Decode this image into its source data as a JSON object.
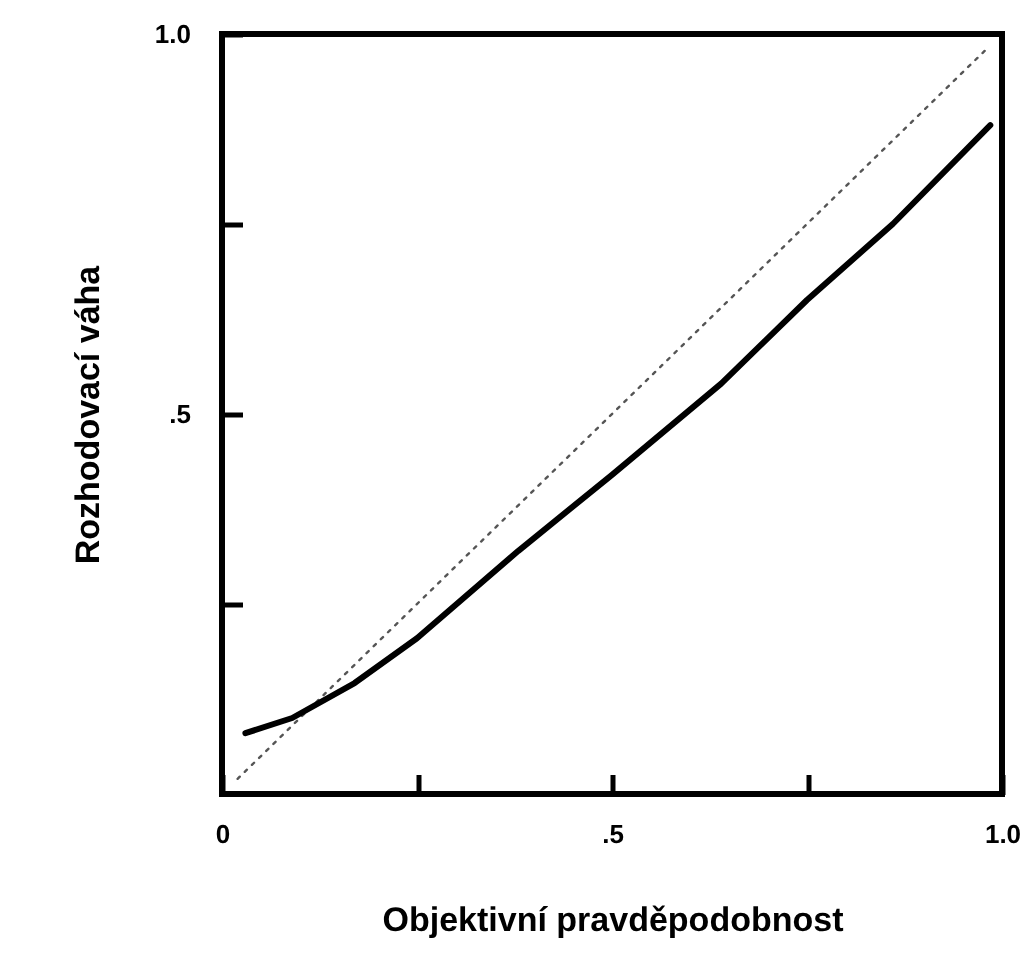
{
  "chart_data": {
    "type": "line",
    "xlabel": "Objektivní pravděpodobnost",
    "ylabel": "Rozhodovací váha",
    "xlim": [
      0,
      1
    ],
    "ylim": [
      0,
      1
    ],
    "xticks": [
      {
        "value": 0,
        "label": "0"
      },
      {
        "value": 0.25,
        "label": null
      },
      {
        "value": 0.5,
        "label": ".5"
      },
      {
        "value": 0.75,
        "label": null
      },
      {
        "value": 1,
        "label": "1.0"
      }
    ],
    "yticks": [
      {
        "value": 0.25,
        "label": null
      },
      {
        "value": 0.5,
        "label": ".5"
      },
      {
        "value": 0.75,
        "label": null
      },
      {
        "value": 1,
        "label": "1.0"
      }
    ],
    "grid": false,
    "marker": "none",
    "series": [
      {
        "color": "#555555",
        "line_style": "dotted",
        "x": [
          0.02,
          0.98
        ],
        "values": [
          0.02,
          0.98
        ]
      },
      {
        "color": "#000000",
        "line_style": "solid",
        "x": [
          0.03,
          0.09,
          0.17,
          0.25,
          0.38,
          0.5,
          0.64,
          0.75,
          0.86,
          0.985
        ],
        "values": [
          0.08,
          0.1,
          0.146,
          0.205,
          0.32,
          0.42,
          0.54,
          0.65,
          0.75,
          0.88
        ]
      }
    ]
  }
}
